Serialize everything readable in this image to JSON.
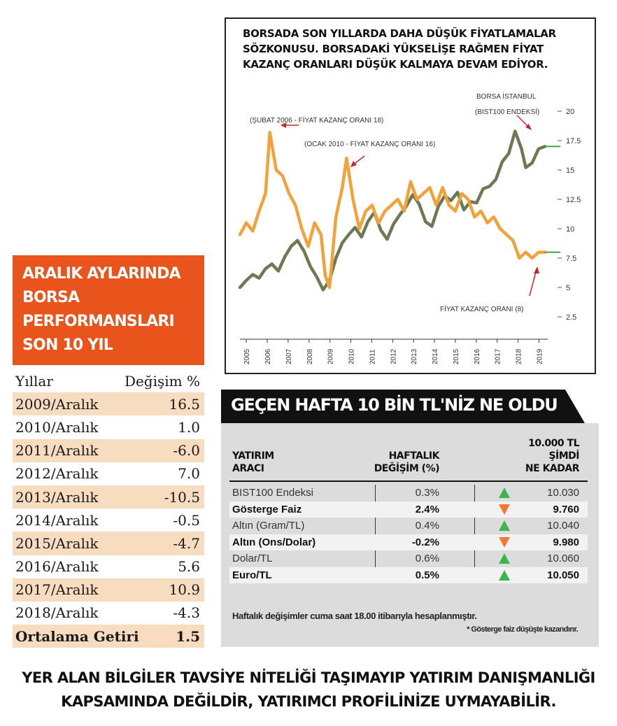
{
  "chart_data": {
    "type": "line",
    "title": "BORSADA SON YILLARDA DAHA DÜŞÜK FİYATLAMALAR SÖZKONUSU. BORSADAKİ YÜKSELİŞE RAĞMEN FİYAT KAZANÇ ORANLARI DÜŞÜK KALMAYA DEVAM EDİYOR.",
    "x_tick_labels": [
      "2005",
      "2006",
      "2007",
      "2008",
      "2009",
      "2010",
      "2011",
      "2012",
      "2013",
      "2014",
      "2015",
      "2016",
      "2017",
      "2018",
      "2019"
    ],
    "y_tick_labels": [
      "20",
      "17.5",
      "15",
      "12.5",
      "10",
      "7.5",
      "5",
      "2.5"
    ],
    "ylim": [
      0,
      20
    ],
    "axis_side": "right",
    "series": [
      {
        "name": "BORSA İSTANBUL (BIST100 ENDEKSİ)",
        "color": "#6b7a52",
        "x": [
          2005.0,
          2005.3,
          2005.6,
          2005.9,
          2006.2,
          2006.5,
          2006.8,
          2007.1,
          2007.4,
          2007.7,
          2008.0,
          2008.3,
          2008.6,
          2008.9,
          2009.2,
          2009.5,
          2009.8,
          2010.1,
          2010.4,
          2010.7,
          2011.0,
          2011.3,
          2011.6,
          2011.9,
          2012.2,
          2012.5,
          2012.8,
          2013.1,
          2013.4,
          2013.7,
          2014.0,
          2014.3,
          2014.6,
          2014.9,
          2015.2,
          2015.5,
          2015.8,
          2016.1,
          2016.4,
          2016.7,
          2017.0,
          2017.3,
          2017.6,
          2017.9,
          2018.2,
          2018.4,
          2018.7,
          2019.0,
          2019.3
        ],
        "values": [
          5.0,
          5.6,
          6.1,
          5.8,
          6.6,
          7.0,
          6.4,
          7.6,
          8.5,
          9.0,
          8.1,
          6.8,
          5.9,
          4.8,
          5.6,
          7.5,
          8.8,
          9.5,
          10.1,
          9.3,
          10.6,
          11.4,
          9.9,
          9.1,
          10.4,
          11.2,
          11.9,
          12.9,
          12.1,
          10.6,
          10.2,
          11.9,
          12.8,
          12.4,
          13.1,
          11.6,
          12.3,
          12.2,
          13.4,
          13.6,
          14.2,
          15.7,
          16.4,
          18.3,
          16.8,
          15.2,
          15.6,
          16.8,
          17.0
        ]
      },
      {
        "name": "FİYAT KAZANÇ ORANI (8)",
        "color": "#f2a23a",
        "x": [
          2005.0,
          2005.3,
          2005.6,
          2005.9,
          2006.2,
          2006.4,
          2006.7,
          2007.0,
          2007.3,
          2007.6,
          2007.9,
          2008.2,
          2008.5,
          2008.8,
          2009.0,
          2009.2,
          2009.5,
          2009.8,
          2010.0,
          2010.3,
          2010.6,
          2010.9,
          2011.2,
          2011.5,
          2011.8,
          2012.1,
          2012.4,
          2012.7,
          2013.0,
          2013.3,
          2013.6,
          2013.9,
          2014.2,
          2014.5,
          2014.8,
          2015.1,
          2015.4,
          2015.7,
          2016.0,
          2016.3,
          2016.6,
          2016.9,
          2017.2,
          2017.5,
          2017.8,
          2018.1,
          2018.4,
          2018.7,
          2019.0,
          2019.3
        ],
        "values": [
          9.5,
          10.5,
          9.8,
          11.5,
          13.0,
          18.2,
          15.0,
          14.5,
          13.0,
          12.0,
          10.0,
          8.5,
          10.5,
          9.5,
          6.0,
          5.0,
          11.0,
          13.5,
          16.0,
          12.5,
          10.0,
          11.5,
          12.0,
          10.5,
          11.5,
          12.0,
          12.5,
          11.5,
          14.0,
          12.5,
          13.0,
          13.5,
          12.0,
          13.5,
          12.0,
          11.5,
          13.0,
          12.5,
          11.0,
          11.5,
          10.5,
          11.0,
          10.0,
          9.5,
          9.0,
          7.5,
          8.0,
          7.5,
          8.0,
          8.0
        ]
      }
    ],
    "annotations": [
      "(ŞUBAT 2006 - FİYAT KAZANÇ ORANI 18)",
      "(OCAK 2010 - FİYAT KAZANÇ ORANI 16)",
      "BORSA İSTANBUL",
      "(BIST100 ENDEKSİ)",
      "FİYAT KAZANÇ ORANI (8)"
    ]
  },
  "perf": {
    "header": [
      "ARALIK AYLARINDA",
      "BORSA",
      "PERFORMANSLARI",
      "SON 10 YIL"
    ],
    "col_year": "Yıllar",
    "col_change": "Değişim %",
    "rows": [
      {
        "year": "2009/Aralık",
        "value": "16.5"
      },
      {
        "year": "2010/Aralık",
        "value": "1.0"
      },
      {
        "year": "2011/Aralık",
        "value": "-6.0"
      },
      {
        "year": "2012/Aralık",
        "value": "7.0"
      },
      {
        "year": "2013/Aralık",
        "value": "-10.5"
      },
      {
        "year": "2014/Aralık",
        "value": "-0.5"
      },
      {
        "year": "2015/Aralık",
        "value": "-4.7"
      },
      {
        "year": "2016/Aralık",
        "value": "5.6"
      },
      {
        "year": "2017/Aralık",
        "value": "10.9"
      },
      {
        "year": "2018/Aralık",
        "value": "-4.3"
      }
    ],
    "avg_label": "Ortalama Getiri",
    "avg_value": "1.5"
  },
  "weekly": {
    "title": "GEÇEN HAFTA 10 BİN TL'NİZ NE OLDU",
    "col1": [
      "YATIRIM",
      "ARACI"
    ],
    "col2": [
      "HAFTALIK",
      "DEĞİŞİM (%)"
    ],
    "col3": [
      "10.000 TL",
      "ŞİMDİ",
      "NE KADAR"
    ],
    "rows": [
      {
        "name": "BIST100 Endeksi",
        "change": "0.3%",
        "dir": "up",
        "amount": "10.030",
        "bold": false
      },
      {
        "name": "Gösterge Faiz",
        "change": "2.4%",
        "dir": "down",
        "amount": "9.760",
        "bold": true
      },
      {
        "name": "Altın (Gram/TL)",
        "change": "0.4%",
        "dir": "up",
        "amount": "10.040",
        "bold": false
      },
      {
        "name": "Altın (Ons/Dolar)",
        "change": "-0.2%",
        "dir": "down",
        "amount": "9.980",
        "bold": true
      },
      {
        "name": "Dolar/TL",
        "change": "0.6%",
        "dir": "up",
        "amount": "10.060",
        "bold": false
      },
      {
        "name": "Euro/TL",
        "change": "0.5%",
        "dir": "up",
        "amount": "10.050",
        "bold": true
      }
    ],
    "note1": "Haftalık değişimler cuma saat 18.00 itibarıyla hesaplanmıştır.",
    "note2": "* Gösterge faiz düşüşte kazandırır.",
    "up_color": "#3cb54a",
    "down_color": "#f07a34"
  },
  "footer": [
    "YER ALAN BİLGİLER TAVSİYE NİTELİĞİ TAŞIMAYIP YATIRIM DANIŞMANLIĞI",
    "KAPSAMINDA DEĞİLDİR, YATIRIMCI PROFİLİNİZE UYMAYABİLİR."
  ]
}
